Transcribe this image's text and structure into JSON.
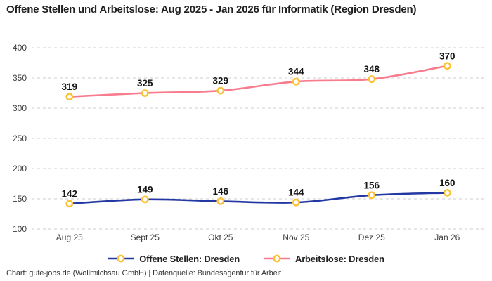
{
  "title": "Offene Stellen und Arbeitslose: Aug 2025 - Jan 2026 für Informatik (Region Dresden)",
  "footer": "Chart: gute-jobs.de (Wollmilchsau GmbH) | Datenquelle: Bundesagentur für Arbeit",
  "colors": {
    "open_positions": "#2338a2",
    "unemployed": "#f87b8e",
    "marker_ring": "#fdc233",
    "marker_fill": "#ffffff",
    "grid": "#cdcdcd",
    "title_text": "#1f1f1f",
    "tick_text": "#3d3d3d",
    "point_label_text": "#161616"
  },
  "chart_data": {
    "type": "line",
    "categories": [
      "Aug 25",
      "Sept 25",
      "Okt 25",
      "Nov 25",
      "Dez 25",
      "Jan 26"
    ],
    "series": [
      {
        "name": "Offene Stellen: Dresden",
        "color_key": "open_positions",
        "values": [
          142,
          149,
          146,
          144,
          156,
          160
        ]
      },
      {
        "name": "Arbeitslose: Dresden",
        "color_key": "unemployed",
        "values": [
          319,
          325,
          329,
          344,
          348,
          370
        ]
      }
    ],
    "title": "Offene Stellen und Arbeitslose: Aug 2025 - Jan 2026 für Informatik (Region Dresden)",
    "xlabel": "",
    "ylabel": "",
    "ylim": [
      100,
      400
    ],
    "ytick_step": 50,
    "yticks": [
      100,
      150,
      200,
      250,
      300,
      350,
      400
    ],
    "grid": "horizontal-dashed",
    "legend_position": "bottom",
    "marker": "gold-ring-circle",
    "show_point_labels": true
  }
}
